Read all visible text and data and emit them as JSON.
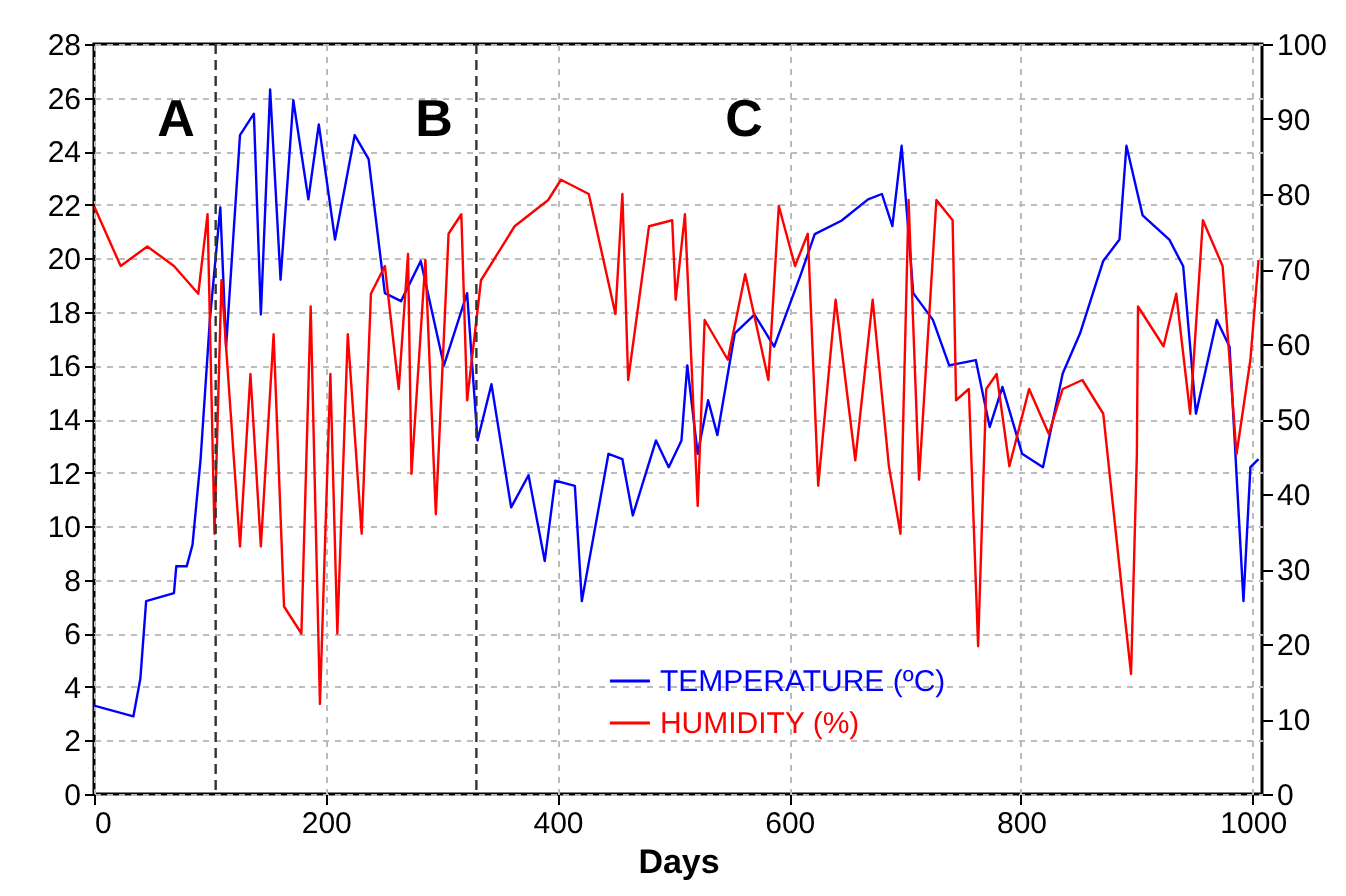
{
  "chart_data": {
    "type": "line",
    "xlabel": "Days",
    "xlim": [
      0,
      1008
    ],
    "xticks": [
      0,
      200,
      400,
      600,
      800,
      1000
    ],
    "ylim": [
      0,
      28
    ],
    "yticks": [
      0,
      2,
      4,
      6,
      8,
      10,
      12,
      14,
      16,
      18,
      20,
      22,
      24,
      26,
      28
    ],
    "y2lim": [
      0,
      100
    ],
    "y2ticks": [
      0,
      10,
      20,
      30,
      40,
      50,
      60,
      70,
      80,
      90,
      100
    ],
    "grid": true,
    "legend": "bottom",
    "line_style": "solid",
    "series": [
      {
        "name": "TEMPERATURE (ºC)",
        "color": "#0000ff",
        "x": [
          0,
          34,
          40,
          45,
          69,
          71,
          80,
          85,
          92,
          100,
          109,
          114,
          126,
          138,
          144,
          152,
          161,
          172,
          185,
          194,
          208,
          225,
          237,
          251,
          265,
          282,
          302,
          322,
          331,
          343,
          360,
          375,
          389,
          398,
          415,
          421,
          444,
          456,
          465,
          485,
          496,
          507,
          512,
          521,
          530,
          538,
          553,
          570,
          587,
          610,
          622,
          645,
          668,
          680,
          689,
          697,
          707,
          724,
          738,
          761,
          773,
          784,
          801,
          819,
          836,
          851,
          871,
          885,
          891,
          905,
          928,
          940,
          951,
          969,
          980,
          992,
          998,
          1005
        ],
        "values": [
          3.3,
          2.9,
          4.3,
          7.2,
          7.5,
          8.5,
          8.5,
          9.3,
          12.5,
          17.7,
          21.9,
          16.7,
          24.6,
          25.4,
          17.9,
          26.3,
          19.2,
          25.9,
          22.2,
          25,
          20.7,
          24.6,
          23.7,
          18.7,
          18.4,
          19.9,
          16,
          18.7,
          13.2,
          15.3,
          10.7,
          11.9,
          8.7,
          11.7,
          11.5,
          7.2,
          12.7,
          12.5,
          10.4,
          13.2,
          12.2,
          13.2,
          16,
          12.7,
          14.7,
          13.4,
          17.2,
          17.9,
          16.7,
          19.4,
          20.9,
          21.4,
          22.2,
          22.4,
          21.2,
          24.2,
          18.7,
          17.7,
          16,
          16.2,
          13.7,
          15.2,
          12.7,
          12.2,
          15.7,
          17.2,
          19.9,
          20.7,
          24.2,
          21.6,
          20.7,
          19.7,
          14.2,
          17.7,
          16.7,
          7.2,
          12.2,
          12.5
        ]
      },
      {
        "name": "HUMIDITY (%)",
        "color": "#ff0000",
        "axis": "y2",
        "x": [
          0,
          23,
          46,
          69,
          90,
          98,
          104,
          110,
          118,
          126,
          135,
          144,
          155,
          164,
          179,
          187,
          195,
          204,
          210,
          219,
          231,
          239,
          251,
          263,
          271,
          274,
          286,
          295,
          306,
          317,
          322,
          334,
          363,
          392,
          403,
          427,
          450,
          456,
          461,
          479,
          499,
          502,
          510,
          521,
          527,
          547,
          562,
          582,
          591,
          605,
          616,
          625,
          640,
          657,
          672,
          686,
          696,
          703,
          712,
          727,
          741,
          744,
          755,
          763,
          770,
          779,
          790,
          807,
          824,
          836,
          853,
          871,
          888,
          895,
          900,
          901,
          923,
          934,
          946,
          957,
          974,
          986,
          998,
          1005
        ],
        "values": [
          78.4,
          70.4,
          73,
          70.4,
          66.7,
          77.3,
          34.7,
          68.5,
          50.7,
          33,
          56,
          33,
          61.3,
          25,
          21.4,
          65,
          12,
          56,
          21.4,
          61.3,
          34.7,
          66.7,
          70.4,
          54,
          72,
          42.7,
          71.2,
          37.3,
          74.7,
          77.3,
          52.5,
          68.5,
          75.7,
          79.2,
          81.9,
          80,
          64,
          80,
          55.2,
          75.7,
          76.5,
          65.9,
          77.3,
          38.4,
          63.2,
          57.9,
          69.3,
          55.2,
          78.4,
          70.4,
          74.7,
          41.1,
          65.9,
          44.5,
          65.9,
          43.7,
          34.7,
          79.2,
          41.9,
          79.2,
          76.5,
          52.5,
          54,
          19.7,
          54,
          56,
          43.7,
          54,
          48,
          54,
          55.2,
          50.7,
          25.9,
          16,
          45.3,
          65,
          59.7,
          66.7,
          50.7,
          76.5,
          70.4,
          45.3,
          57.9,
          71.2
        ]
      }
    ],
    "ref_lines": [
      {
        "axis": "x",
        "value": 105,
        "color": "#333333",
        "line_style": "dashed"
      },
      {
        "axis": "x",
        "value": 330,
        "color": "#333333",
        "line_style": "dashed"
      }
    ],
    "annotations": [
      "A",
      "B",
      "C"
    ]
  }
}
